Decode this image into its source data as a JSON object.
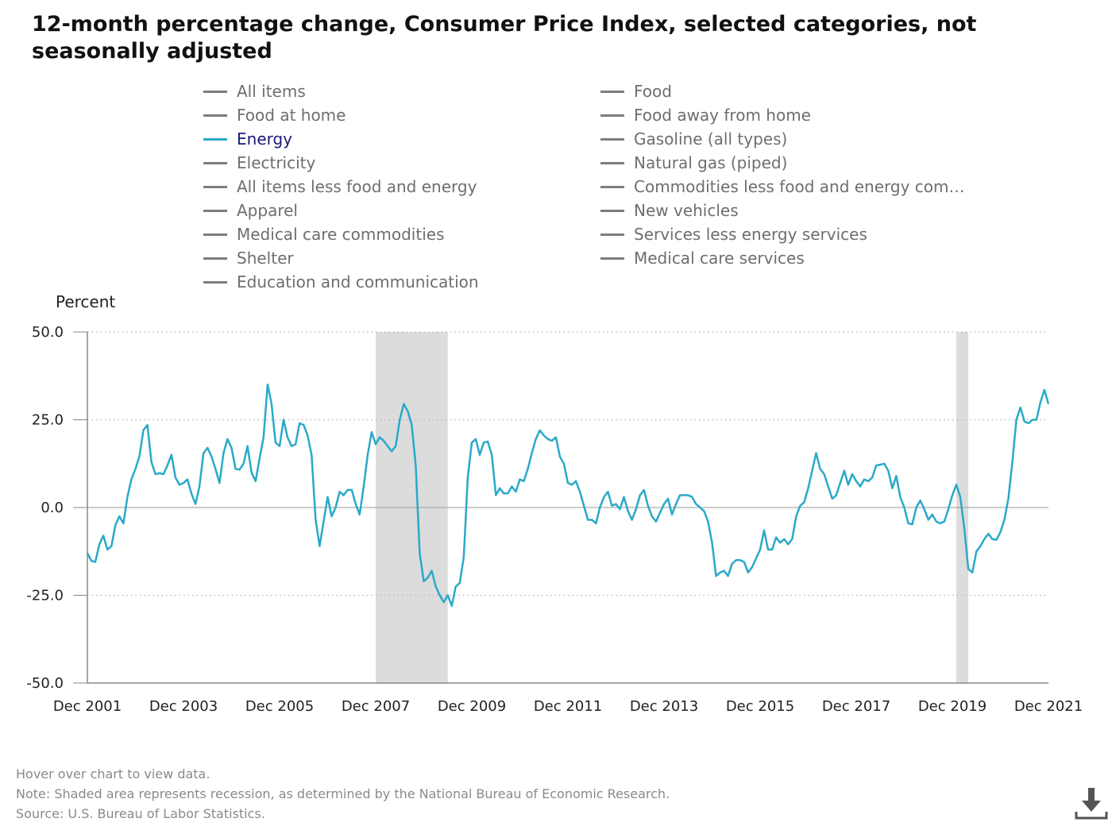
{
  "title": "12-month percentage change, Consumer Price Index, selected categories, not seasonally adjusted",
  "legend": {
    "left": [
      "All items",
      "Food at home",
      "Energy",
      "Electricity",
      "All items less food and energy",
      "Apparel",
      "Medical care commodities",
      "Shelter",
      "Education and communication"
    ],
    "right": [
      "Food",
      "Food away from home",
      "Gasoline (all types)",
      "Natural gas (piped)",
      "Commodities less food and energy com…",
      "New vehicles",
      "Services less energy services",
      "Medical care services"
    ],
    "active": "Energy"
  },
  "footer": {
    "hover": "Hover over chart to view data.",
    "note": "Note: Shaded area represents recession, as determined by the National Bureau of Economic Research.",
    "source": "Source: U.S. Bureau of Labor Statistics."
  },
  "download_icon": "download-icon",
  "chart_data": {
    "type": "line",
    "ylabel": "Percent",
    "ylim": [
      -50,
      50
    ],
    "yticks": [
      "50.0",
      "25.0",
      "0.0",
      "-25.0",
      "-50.0"
    ],
    "ytick_values": [
      50,
      25,
      0,
      -25,
      -50
    ],
    "xticks": [
      "Dec 2001",
      "Dec 2003",
      "Dec 2005",
      "Dec 2007",
      "Dec 2009",
      "Dec 2011",
      "Dec 2013",
      "Dec 2015",
      "Dec 2017",
      "Dec 2019",
      "Dec 2021"
    ],
    "xtick_years": [
      2001.917,
      2003.917,
      2005.917,
      2007.917,
      2009.917,
      2011.917,
      2013.917,
      2015.917,
      2017.917,
      2019.917,
      2021.917
    ],
    "xlim": [
      2001.917,
      2021.917
    ],
    "grid": "dotted horizontal",
    "colors": {
      "line": "#2aa9c9",
      "recession": "#dcdcdc",
      "axis": "#888888",
      "grid": "#bbbbbb"
    },
    "recessions": [
      [
        2007.917,
        2009.417
      ],
      [
        2020.0,
        2020.25
      ]
    ],
    "series": [
      {
        "name": "Energy",
        "x": [
          2001.917,
          2002.0,
          2002.083,
          2002.167,
          2002.25,
          2002.333,
          2002.417,
          2002.5,
          2002.583,
          2002.667,
          2002.75,
          2002.833,
          2002.917,
          2003.0,
          2003.083,
          2003.167,
          2003.25,
          2003.333,
          2003.417,
          2003.5,
          2003.583,
          2003.667,
          2003.75,
          2003.833,
          2003.917,
          2004.0,
          2004.083,
          2004.167,
          2004.25,
          2004.333,
          2004.417,
          2004.5,
          2004.583,
          2004.667,
          2004.75,
          2004.833,
          2004.917,
          2005.0,
          2005.083,
          2005.167,
          2005.25,
          2005.333,
          2005.417,
          2005.5,
          2005.583,
          2005.667,
          2005.75,
          2005.833,
          2005.917,
          2006.0,
          2006.083,
          2006.167,
          2006.25,
          2006.333,
          2006.417,
          2006.5,
          2006.583,
          2006.667,
          2006.75,
          2006.833,
          2006.917,
          2007.0,
          2007.083,
          2007.167,
          2007.25,
          2007.333,
          2007.417,
          2007.5,
          2007.583,
          2007.667,
          2007.75,
          2007.833,
          2007.917,
          2008.0,
          2008.083,
          2008.167,
          2008.25,
          2008.333,
          2008.417,
          2008.5,
          2008.583,
          2008.667,
          2008.75,
          2008.833,
          2008.917,
          2009.0,
          2009.083,
          2009.167,
          2009.25,
          2009.333,
          2009.417,
          2009.5,
          2009.583,
          2009.667,
          2009.75,
          2009.833,
          2009.917,
          2010.0,
          2010.083,
          2010.167,
          2010.25,
          2010.333,
          2010.417,
          2010.5,
          2010.583,
          2010.667,
          2010.75,
          2010.833,
          2010.917,
          2011.0,
          2011.083,
          2011.167,
          2011.25,
          2011.333,
          2011.417,
          2011.5,
          2011.583,
          2011.667,
          2011.75,
          2011.833,
          2011.917,
          2012.0,
          2012.083,
          2012.167,
          2012.25,
          2012.333,
          2012.417,
          2012.5,
          2012.583,
          2012.667,
          2012.75,
          2012.833,
          2012.917,
          2013.0,
          2013.083,
          2013.167,
          2013.25,
          2013.333,
          2013.417,
          2013.5,
          2013.583,
          2013.667,
          2013.75,
          2013.833,
          2013.917,
          2014.0,
          2014.083,
          2014.167,
          2014.25,
          2014.333,
          2014.417,
          2014.5,
          2014.583,
          2014.667,
          2014.75,
          2014.833,
          2014.917,
          2015.0,
          2015.083,
          2015.167,
          2015.25,
          2015.333,
          2015.417,
          2015.5,
          2015.583,
          2015.667,
          2015.75,
          2015.833,
          2015.917,
          2016.0,
          2016.083,
          2016.167,
          2016.25,
          2016.333,
          2016.417,
          2016.5,
          2016.583,
          2016.667,
          2016.75,
          2016.833,
          2016.917,
          2017.0,
          2017.083,
          2017.167,
          2017.25,
          2017.333,
          2017.417,
          2017.5,
          2017.583,
          2017.667,
          2017.75,
          2017.833,
          2017.917,
          2018.0,
          2018.083,
          2018.167,
          2018.25,
          2018.333,
          2018.417,
          2018.5,
          2018.583,
          2018.667,
          2018.75,
          2018.833,
          2018.917,
          2019.0,
          2019.083,
          2019.167,
          2019.25,
          2019.333,
          2019.417,
          2019.5,
          2019.583,
          2019.667,
          2019.75,
          2019.833,
          2019.917,
          2020.0,
          2020.083,
          2020.167,
          2020.25,
          2020.333,
          2020.417,
          2020.5,
          2020.583,
          2020.667,
          2020.75,
          2020.833,
          2020.917,
          2021.0,
          2021.083,
          2021.167,
          2021.25,
          2021.333,
          2021.417,
          2021.5,
          2021.583,
          2021.667,
          2021.75,
          2021.833,
          2021.917
        ],
        "values": [
          -13.0,
          -15.2,
          -15.5,
          -10.5,
          -8.0,
          -12.0,
          -11.0,
          -5.0,
          -2.5,
          -4.5,
          3.0,
          8.0,
          11.0,
          14.5,
          22.0,
          23.5,
          13.0,
          9.5,
          9.8,
          9.5,
          12.0,
          15.0,
          8.5,
          6.5,
          7.0,
          8.0,
          4.0,
          1.0,
          6.0,
          15.5,
          17.0,
          14.5,
          11.0,
          7.0,
          15.5,
          19.5,
          17.0,
          11.0,
          10.8,
          12.5,
          17.5,
          10.0,
          7.5,
          14.0,
          20.0,
          35.0,
          29.5,
          18.5,
          17.5,
          25.0,
          20.0,
          17.5,
          18.0,
          24.0,
          23.5,
          20.5,
          15.0,
          -3.5,
          -11.0,
          -4.0,
          3.0,
          -2.5,
          0.0,
          4.5,
          3.5,
          5.0,
          5.0,
          1.0,
          -2.0,
          6.0,
          15.0,
          21.5,
          18.0,
          20.0,
          19.0,
          17.5,
          16.0,
          17.5,
          25.0,
          29.5,
          27.5,
          23.5,
          12.0,
          -13.0,
          -21.0,
          -20.0,
          -18.0,
          -22.5,
          -25.0,
          -27.0,
          -25.0,
          -28.0,
          -22.5,
          -21.5,
          -14.0,
          8.5,
          18.5,
          19.5,
          15.0,
          18.5,
          18.8,
          15.0,
          3.5,
          5.5,
          4.0,
          4.0,
          6.0,
          4.5,
          8.0,
          7.5,
          11.0,
          15.5,
          19.5,
          22.0,
          20.5,
          19.5,
          19.0,
          20.0,
          14.5,
          12.5,
          7.0,
          6.5,
          7.5,
          4.5,
          0.5,
          -3.5,
          -3.5,
          -4.5,
          0.0,
          3.0,
          4.5,
          0.5,
          1.0,
          -0.5,
          3.0,
          -1.0,
          -3.5,
          -0.5,
          3.5,
          5.0,
          0.5,
          -2.5,
          -4.0,
          -1.5,
          1.0,
          2.5,
          -2.0,
          1.0,
          3.5,
          3.5,
          3.5,
          3.0,
          1.0,
          0.0,
          -1.0,
          -4.0,
          -10.0,
          -19.5,
          -18.5,
          -18.0,
          -19.5,
          -16.0,
          -15.0,
          -15.0,
          -15.5,
          -18.5,
          -17.0,
          -14.5,
          -12.0,
          -6.5,
          -12.0,
          -12.0,
          -8.5,
          -10.0,
          -9.0,
          -10.5,
          -9.0,
          -2.5,
          0.5,
          1.5,
          5.5,
          10.5,
          15.5,
          11.0,
          9.5,
          6.0,
          2.5,
          3.5,
          7.0,
          10.5,
          6.5,
          9.5,
          7.5,
          6.0,
          8.0,
          7.5,
          8.5,
          12.0,
          12.2,
          12.5,
          10.5,
          5.5,
          9.0,
          3.0,
          0.0,
          -4.5,
          -4.8,
          0.0,
          2.0,
          -0.5,
          -3.5,
          -2.0,
          -4.0,
          -4.5,
          -4.0,
          -0.5,
          3.5,
          6.5,
          3.0,
          -6.0,
          -17.5,
          -18.5,
          -12.5,
          -11.0,
          -9.0,
          -7.5,
          -9.0,
          -9.2,
          -7.0,
          -3.5,
          2.5,
          13.0,
          25.0,
          28.5,
          24.5,
          24.0,
          25.0,
          25.0,
          30.0,
          33.5,
          29.5
        ]
      }
    ]
  }
}
